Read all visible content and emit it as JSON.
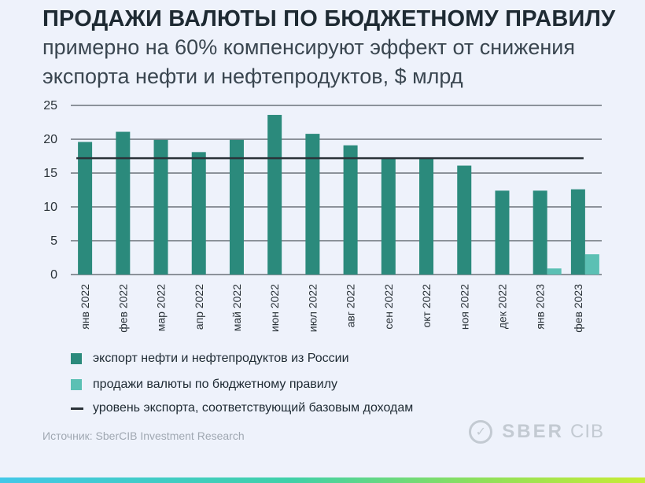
{
  "header": {
    "title": "ПРОДАЖИ ВАЛЮТЫ ПО БЮДЖЕТНОМУ ПРАВИЛУ",
    "subtitle": "примерно на 60% компенсируют эффект от снижения экспорта нефти и нефтепродуктов, $ млрд"
  },
  "colors": {
    "export": "#2b8a7c",
    "sales": "#5bc0b4",
    "baseline": "#2a3238",
    "grid": "#2a3238"
  },
  "chart_data": {
    "type": "bar",
    "title": "ПРОДАЖИ ВАЛЮТЫ ПО БЮДЖЕТНОМУ ПРАВИЛУ",
    "ylabel": "$ млрд",
    "ylim": [
      0,
      25
    ],
    "yticks": [
      0,
      5,
      10,
      15,
      20,
      25
    ],
    "grid": true,
    "categories": [
      "янв 2022",
      "фев 2022",
      "мар 2022",
      "апр 2022",
      "май 2022",
      "июн 2022",
      "июл 2022",
      "авг 2022",
      "сен 2022",
      "окт 2022",
      "ноя 2022",
      "дек 2022",
      "янв 2023",
      "фев 2023"
    ],
    "series": [
      {
        "name": "экспорт нефти и нефтепродуктов из России",
        "values": [
          19.6,
          21.1,
          19.9,
          18.1,
          19.9,
          23.6,
          20.8,
          19.1,
          17.2,
          17.2,
          16.1,
          12.4,
          12.4,
          12.6
        ]
      },
      {
        "name": "продажи валюты по бюджетному правилу",
        "values": [
          null,
          null,
          null,
          null,
          null,
          null,
          null,
          null,
          null,
          null,
          null,
          null,
          0.9,
          3.0
        ]
      }
    ],
    "reference_line": {
      "name": "уровень экспорта, соответствующий базовым доходам",
      "value": 17.2
    }
  },
  "legend": {
    "export_label": "экспорт нефти и нефтепродуктов из России",
    "sales_label": "продажи валюты по бюджетному правилу",
    "baseline_label": "уровень экспорта, соответствующий базовым доходам"
  },
  "footer": {
    "source": "Источник: SberCIB Investment Research",
    "brand_name": "SBER",
    "brand_sub": "CIB",
    "brand_mark": "✓"
  }
}
